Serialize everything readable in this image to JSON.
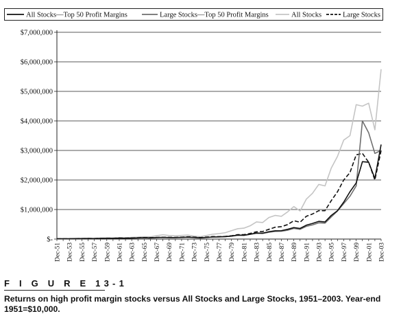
{
  "figure": {
    "label": "F I G U R E  13-1",
    "caption": "Returns on high profit margin stocks versus All Stocks and Large Stocks, 1951–2003. Year-end 1951=$10,000."
  },
  "chart_data": {
    "type": "line",
    "title": "",
    "xlabel": "",
    "ylabel": "",
    "ylim": [
      0,
      7000000
    ],
    "yticks": [
      0,
      1000000,
      2000000,
      3000000,
      4000000,
      5000000,
      6000000,
      7000000
    ],
    "ytick_labels": [
      "$-",
      "$1,000,000",
      "$2,000,000",
      "$3,000,000",
      "$4,000,000",
      "$5,000,000",
      "$6,000,000",
      "$7,000,000"
    ],
    "x": [
      "Dec-51",
      "Dec-52",
      "Dec-53",
      "Dec-54",
      "Dec-55",
      "Dec-56",
      "Dec-57",
      "Dec-58",
      "Dec-59",
      "Dec-60",
      "Dec-61",
      "Dec-62",
      "Dec-63",
      "Dec-64",
      "Dec-65",
      "Dec-66",
      "Dec-67",
      "Dec-68",
      "Dec-69",
      "Dec-70",
      "Dec-71",
      "Dec-72",
      "Dec-73",
      "Dec-74",
      "Dec-75",
      "Dec-76",
      "Dec-77",
      "Dec-78",
      "Dec-79",
      "Dec-80",
      "Dec-81",
      "Dec-82",
      "Dec-83",
      "Dec-84",
      "Dec-85",
      "Dec-86",
      "Dec-87",
      "Dec-88",
      "Dec-89",
      "Dec-90",
      "Dec-91",
      "Dec-92",
      "Dec-93",
      "Dec-94",
      "Dec-95",
      "Dec-96",
      "Dec-97",
      "Dec-98",
      "Dec-99",
      "Dec-00",
      "Dec-01",
      "Dec-02",
      "Dec-03"
    ],
    "xtick_labels": [
      "Dec-51",
      "Dec-53",
      "Dec-55",
      "Dec-57",
      "Dec-59",
      "Dec-61",
      "Dec-63",
      "Dec-65",
      "Dec-67",
      "Dec-69",
      "Dec-71",
      "Dec-73",
      "Dec-75",
      "Dec-77",
      "Dec-79",
      "Dec-81",
      "Dec-83",
      "Dec-85",
      "Dec-87",
      "Dec-89",
      "Dec-91",
      "Dec-93",
      "Dec-95",
      "Dec-97",
      "Dec-99",
      "Dec-01",
      "Dec-03"
    ],
    "grid": "horizontal",
    "legend_position": "top",
    "series": [
      {
        "name": "All Stocks—Top 50 Profit Margins",
        "color": "#111111",
        "dash": "solid",
        "width": 1.6,
        "values": [
          10000,
          11000,
          11000,
          15000,
          17000,
          18000,
          17000,
          23000,
          26000,
          25000,
          32000,
          28000,
          33000,
          38000,
          44000,
          39000,
          50000,
          57000,
          50000,
          50000,
          56000,
          65000,
          53000,
          40000,
          55000,
          70000,
          75000,
          82000,
          100000,
          135000,
          130000,
          165000,
          205000,
          200000,
          250000,
          280000,
          285000,
          330000,
          390000,
          360000,
          470000,
          530000,
          600000,
          580000,
          800000,
          960000,
          1250000,
          1600000,
          1900000,
          2620000,
          2600000,
          2050000,
          3200000
        ]
      },
      {
        "name": "Large Stocks—Top 50 Profit Margins",
        "color": "#6e6e6e",
        "dash": "solid",
        "width": 1.6,
        "values": [
          10000,
          11000,
          11000,
          15000,
          17000,
          18000,
          17000,
          23000,
          26000,
          25000,
          32000,
          28000,
          33000,
          38000,
          44000,
          39000,
          50000,
          57000,
          50000,
          50000,
          56000,
          65000,
          53000,
          40000,
          55000,
          70000,
          75000,
          82000,
          100000,
          130000,
          125000,
          160000,
          195000,
          190000,
          230000,
          260000,
          265000,
          300000,
          360000,
          330000,
          430000,
          480000,
          550000,
          540000,
          750000,
          950000,
          1200000,
          1450000,
          1800000,
          4000000,
          3600000,
          2900000,
          3000000
        ]
      },
      {
        "name": "All Stocks",
        "color": "#c4c4c4",
        "dash": "solid",
        "width": 1.6,
        "values": [
          10000,
          12000,
          13000,
          19000,
          22000,
          24000,
          22000,
          33000,
          38000,
          38000,
          50000,
          45000,
          57000,
          66000,
          80000,
          76000,
          115000,
          145000,
          120000,
          110000,
          125000,
          135000,
          100000,
          80000,
          120000,
          165000,
          185000,
          215000,
          285000,
          350000,
          370000,
          450000,
          580000,
          560000,
          730000,
          800000,
          770000,
          920000,
          1100000,
          950000,
          1350000,
          1550000,
          1850000,
          1800000,
          2400000,
          2800000,
          3350000,
          3500000,
          4550000,
          4500000,
          4600000,
          3700000,
          5750000
        ]
      },
      {
        "name": "Large Stocks",
        "color": "#111111",
        "dash": "6,3",
        "width": 1.6,
        "values": [
          10000,
          12000,
          12000,
          17000,
          20000,
          21000,
          19000,
          27000,
          30000,
          29000,
          36000,
          33000,
          40000,
          46000,
          52000,
          47000,
          58000,
          64000,
          59000,
          58000,
          66000,
          78000,
          67000,
          50000,
          68000,
          85000,
          83000,
          92000,
          112000,
          150000,
          150000,
          190000,
          245000,
          255000,
          330000,
          400000,
          420000,
          490000,
          620000,
          570000,
          770000,
          850000,
          960000,
          960000,
          1300000,
          1600000,
          2000000,
          2250000,
          2850000,
          2900000,
          2600000,
          2000000,
          3000000
        ]
      }
    ]
  }
}
